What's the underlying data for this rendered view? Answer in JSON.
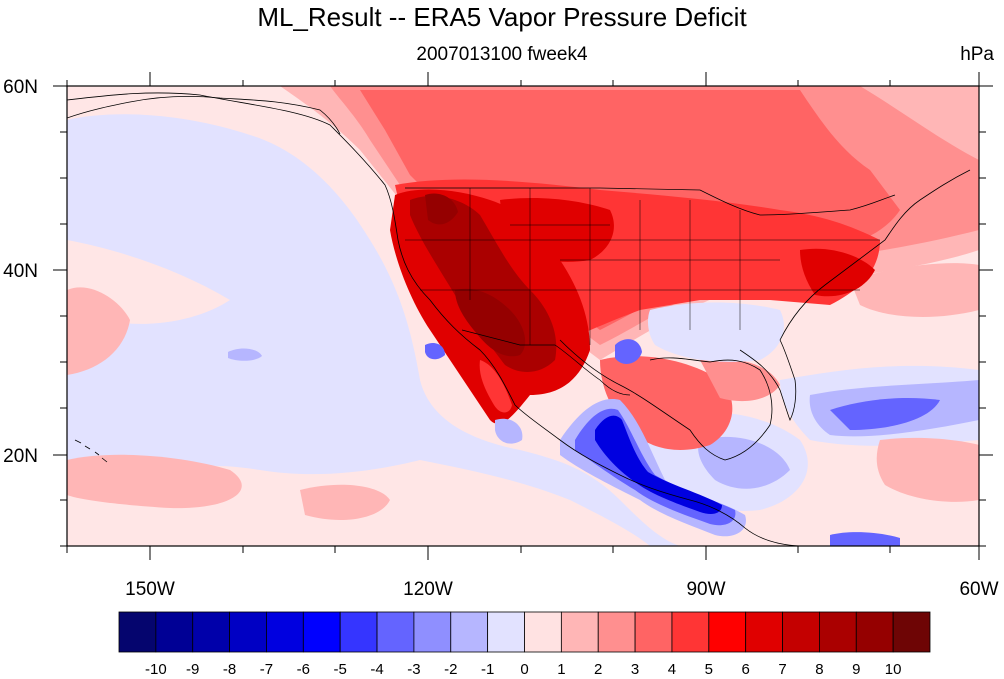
{
  "title": "ML_Result -- ERA5 Vapor Pressure Deficit",
  "subtitle_center": "2007013100 fweek4",
  "subtitle_right": "hPa",
  "lat_labels": [
    "60N",
    "40N",
    "20N"
  ],
  "lon_labels": [
    "150W",
    "120W",
    "90W",
    "60W"
  ],
  "map_extent": {
    "lon": [
      -160,
      -60
    ],
    "lat": [
      10,
      60
    ]
  },
  "colorbar": {
    "labels": [
      "-10",
      "-9",
      "-8",
      "-7",
      "-6",
      "-5",
      "-4",
      "-3",
      "-2",
      "-1",
      "0",
      "1",
      "2",
      "3",
      "4",
      "5",
      "6",
      "7",
      "8",
      "9",
      "10"
    ],
    "colors": [
      "#05056e",
      "#000095",
      "#0000aa",
      "#0000c4",
      "#0000e0",
      "#0000ff",
      "#3535ff",
      "#6464ff",
      "#8f8fff",
      "#b6b6ff",
      "#e2e2ff",
      "#ffe2e2",
      "#ffb6b6",
      "#ff8f8f",
      "#ff6464",
      "#ff3535",
      "#ff0000",
      "#e00000",
      "#c40000",
      "#aa0000",
      "#950000",
      "#6e0505"
    ]
  },
  "fill_colors": {
    "ocean_bg": "#ffe6e6",
    "pale_blue": "#e2e2ff",
    "light_blue": "#b6b6ff",
    "mid_blue": "#6464ff",
    "blue": "#0000e0",
    "pale_red": "#ffb6b6",
    "light_red": "#ff8f8f",
    "red": "#ff6464",
    "strong_red": "#ff3535",
    "deep_red": "#e00000",
    "dark_red": "#aa0000",
    "darkest_red": "#950000"
  }
}
